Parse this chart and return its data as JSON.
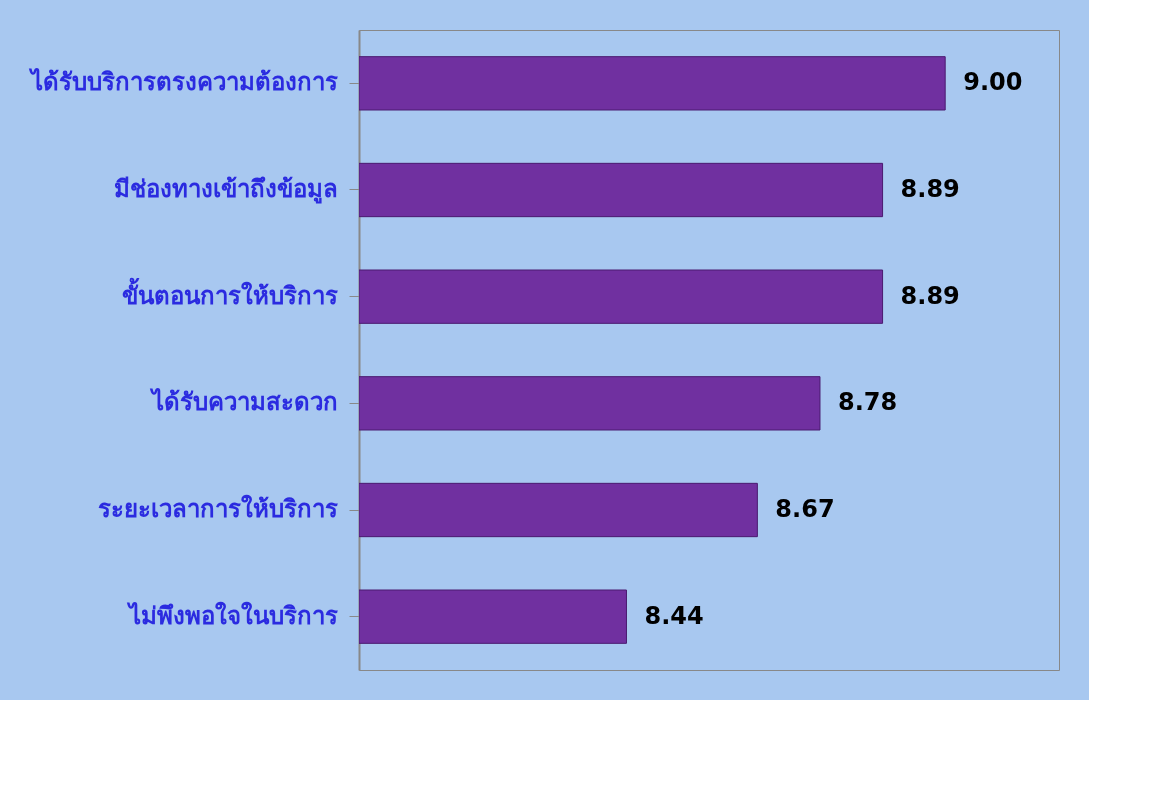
{
  "chart_data": {
    "type": "bar",
    "orientation": "horizontal",
    "categories": [
      "ได้รับบริการตรงความต้องการ",
      "มีช่องทางเข้าถึงข้อมูล",
      "ขั้นตอนการให้บริการ",
      "ได้รับความสะดวก",
      "ระยะเวลาการให้บริการ",
      "ไม่พึงพอใจในบริการ"
    ],
    "values": [
      9.0,
      8.89,
      8.89,
      8.78,
      8.67,
      8.44
    ],
    "value_labels": [
      "9.00",
      "8.89",
      "8.89",
      "8.78",
      "8.67",
      "8.44"
    ],
    "color": "#7030a0",
    "xlim": [
      7.97,
      9.2
    ],
    "tick_labels": "y"
  }
}
